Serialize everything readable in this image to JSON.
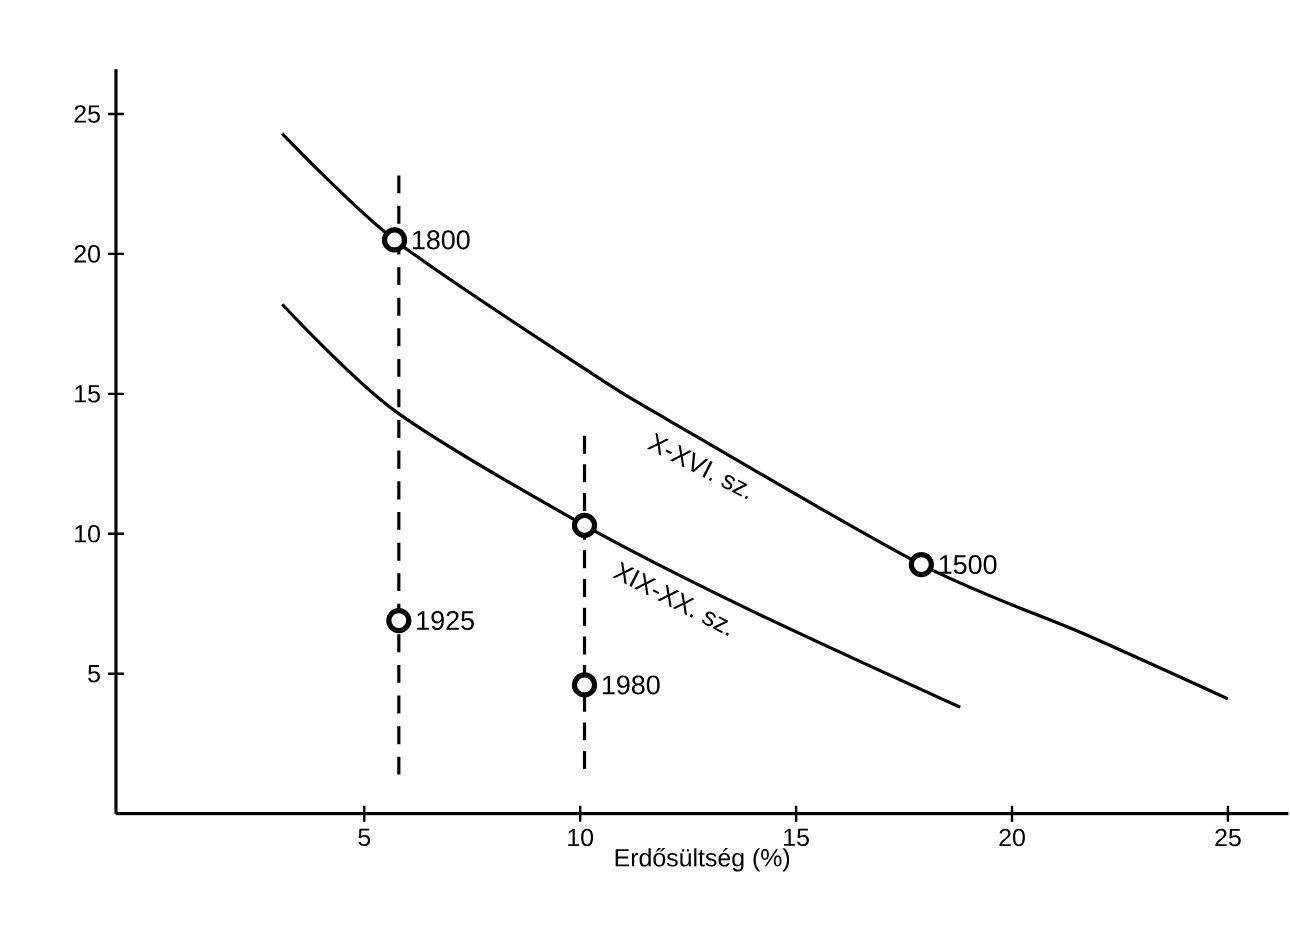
{
  "chart_data": {
    "type": "line",
    "xlabel": "Erdősültség (%)",
    "xlim": [
      -0.75,
      26.4
    ],
    "ylim": [
      0,
      26.6
    ],
    "xticks": [
      5,
      10,
      15,
      20,
      25
    ],
    "yticks": [
      5,
      10,
      15,
      20,
      25
    ],
    "series": [
      {
        "color": "#000000",
        "line_style": "solid",
        "x": [
          3.1,
          5.7,
          10.1,
          12.0,
          17.9,
          21.7,
          25
        ],
        "values": [
          24.3,
          20.5,
          15.9,
          14.1,
          8.9,
          6.4,
          4.1
        ]
      },
      {
        "color": "#000000",
        "line_style": "solid",
        "x": [
          3.1,
          5.7,
          10.1,
          13.9,
          18.8
        ],
        "values": [
          18.2,
          14.4,
          10.3,
          7.3,
          3.8
        ]
      },
      {
        "color": "#000000",
        "line_style": "dashed",
        "x": [
          5.8,
          5.8
        ],
        "values": [
          1.4,
          22.8
        ]
      },
      {
        "color": "#000000",
        "line_style": "dashed",
        "x": [
          10.1,
          10.1
        ],
        "values": [
          1.6,
          13.5
        ]
      },
      {
        "type": "scatter",
        "color": "#000000",
        "marker": "circle",
        "x": [
          5.7,
          17.9,
          10.1,
          5.8,
          10.1
        ],
        "values": [
          20.5,
          8.9,
          10.3,
          6.9,
          4.6
        ]
      }
    ],
    "annotations": [
      {
        "text": "1800",
        "x": 5.7,
        "y": 20.5
      },
      {
        "text": "1500",
        "x": 17.9,
        "y": 8.9
      },
      {
        "text": "1925",
        "x": 5.8,
        "y": 6.9
      },
      {
        "text": "1980",
        "x": 10.1,
        "y": 4.6
      },
      {
        "text": "X-XVI. sz.",
        "x": 11.8,
        "y": 13.9
      },
      {
        "text": "XIX-XX. sz.",
        "x": 11.0,
        "y": 9.3
      }
    ]
  }
}
